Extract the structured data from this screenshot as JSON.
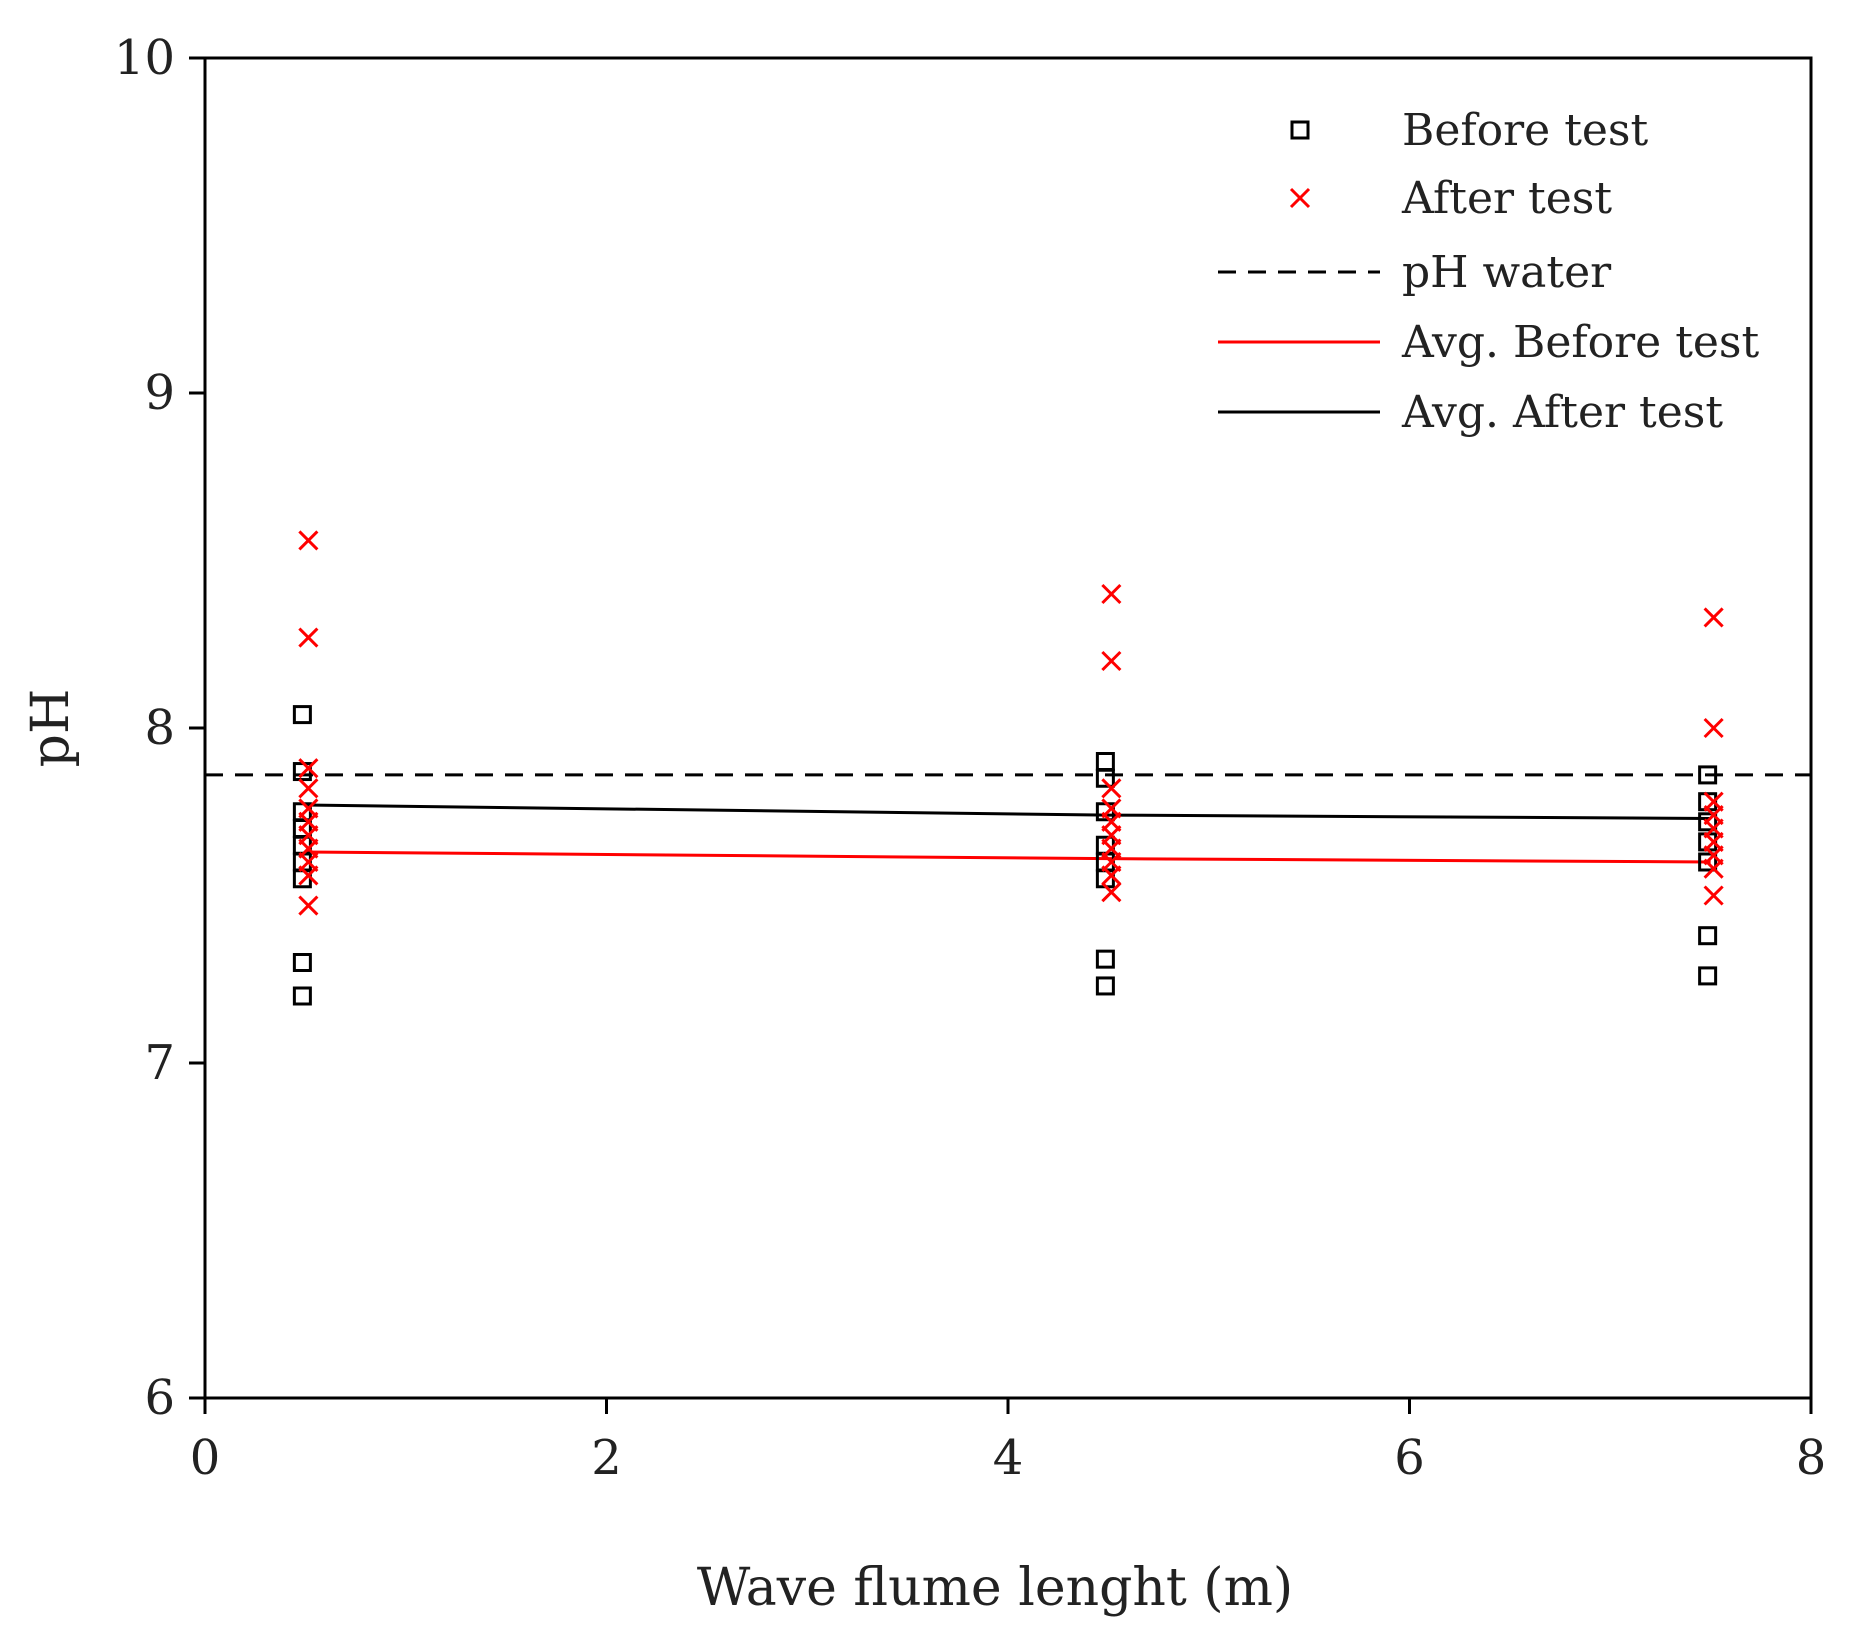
{
  "chart_data": {
    "type": "scatter",
    "title": "",
    "xlabel": "Wave flume lenght (m)",
    "ylabel": "pH",
    "xlim": [
      0,
      8
    ],
    "ylim": [
      6,
      10
    ],
    "xticks": [
      0,
      2,
      4,
      6,
      8
    ],
    "yticks": [
      6,
      7,
      8,
      9,
      10
    ],
    "xtick_labels": [
      "0",
      "2",
      "4",
      "6",
      "8"
    ],
    "ytick_labels": [
      "6",
      "7",
      "8",
      "9",
      "10"
    ],
    "grid": false,
    "legend_position": "top-right",
    "series": [
      {
        "name": "Before test",
        "kind": "marker",
        "marker": "square",
        "color": "#000000",
        "points": [
          {
            "x": 0.5,
            "y": 8.04
          },
          {
            "x": 0.5,
            "y": 7.87
          },
          {
            "x": 0.5,
            "y": 7.75
          },
          {
            "x": 0.5,
            "y": 7.7
          },
          {
            "x": 0.5,
            "y": 7.65
          },
          {
            "x": 0.5,
            "y": 7.6
          },
          {
            "x": 0.5,
            "y": 7.55
          },
          {
            "x": 0.5,
            "y": 7.3
          },
          {
            "x": 0.5,
            "y": 7.2
          },
          {
            "x": 4.5,
            "y": 7.9
          },
          {
            "x": 4.5,
            "y": 7.85
          },
          {
            "x": 4.5,
            "y": 7.75
          },
          {
            "x": 4.5,
            "y": 7.65
          },
          {
            "x": 4.5,
            "y": 7.6
          },
          {
            "x": 4.5,
            "y": 7.55
          },
          {
            "x": 4.5,
            "y": 7.31
          },
          {
            "x": 4.5,
            "y": 7.23
          },
          {
            "x": 7.5,
            "y": 7.86
          },
          {
            "x": 7.5,
            "y": 7.78
          },
          {
            "x": 7.5,
            "y": 7.72
          },
          {
            "x": 7.5,
            "y": 7.66
          },
          {
            "x": 7.5,
            "y": 7.6
          },
          {
            "x": 7.5,
            "y": 7.38
          },
          {
            "x": 7.5,
            "y": 7.26
          }
        ]
      },
      {
        "name": "After test",
        "kind": "marker",
        "marker": "x",
        "color": "#ff0000",
        "points": [
          {
            "x": 0.5,
            "y": 8.56
          },
          {
            "x": 0.5,
            "y": 8.27
          },
          {
            "x": 0.5,
            "y": 7.88
          },
          {
            "x": 0.5,
            "y": 7.82
          },
          {
            "x": 0.5,
            "y": 7.76
          },
          {
            "x": 0.5,
            "y": 7.72
          },
          {
            "x": 0.5,
            "y": 7.68
          },
          {
            "x": 0.5,
            "y": 7.64
          },
          {
            "x": 0.5,
            "y": 7.6
          },
          {
            "x": 0.5,
            "y": 7.56
          },
          {
            "x": 0.5,
            "y": 7.47
          },
          {
            "x": 4.5,
            "y": 8.4
          },
          {
            "x": 4.5,
            "y": 8.2
          },
          {
            "x": 4.5,
            "y": 7.82
          },
          {
            "x": 4.5,
            "y": 7.76
          },
          {
            "x": 4.5,
            "y": 7.72
          },
          {
            "x": 4.5,
            "y": 7.68
          },
          {
            "x": 4.5,
            "y": 7.64
          },
          {
            "x": 4.5,
            "y": 7.6
          },
          {
            "x": 4.5,
            "y": 7.56
          },
          {
            "x": 4.5,
            "y": 7.51
          },
          {
            "x": 7.5,
            "y": 8.33
          },
          {
            "x": 7.5,
            "y": 8.0
          },
          {
            "x": 7.5,
            "y": 7.78
          },
          {
            "x": 7.5,
            "y": 7.74
          },
          {
            "x": 7.5,
            "y": 7.7
          },
          {
            "x": 7.5,
            "y": 7.66
          },
          {
            "x": 7.5,
            "y": 7.62
          },
          {
            "x": 7.5,
            "y": 7.58
          },
          {
            "x": 7.5,
            "y": 7.5
          }
        ]
      },
      {
        "name": "pH water",
        "kind": "line",
        "style": "dashed",
        "color": "#000000",
        "points": [
          {
            "x": 0,
            "y": 7.86
          },
          {
            "x": 8,
            "y": 7.86
          }
        ]
      },
      {
        "name": "Avg. Before test",
        "kind": "line",
        "style": "solid",
        "color": "#ff0000",
        "points": [
          {
            "x": 0.5,
            "y": 7.63
          },
          {
            "x": 4.5,
            "y": 7.61
          },
          {
            "x": 7.5,
            "y": 7.6
          }
        ]
      },
      {
        "name": "Avg. After test",
        "kind": "line",
        "style": "solid",
        "color": "#000000",
        "points": [
          {
            "x": 0.5,
            "y": 7.77
          },
          {
            "x": 4.5,
            "y": 7.74
          },
          {
            "x": 7.5,
            "y": 7.73
          }
        ]
      }
    ]
  }
}
